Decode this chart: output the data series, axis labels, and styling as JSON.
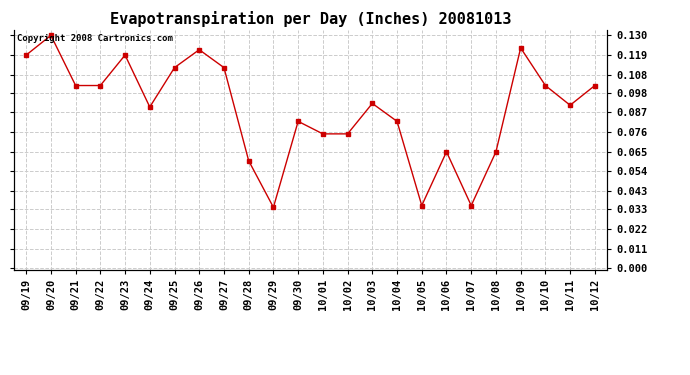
{
  "title": "Evapotranspiration per Day (Inches) 20081013",
  "copyright_text": "Copyright 2008 Cartronics.com",
  "x_labels": [
    "09/19",
    "09/20",
    "09/21",
    "09/22",
    "09/23",
    "09/24",
    "09/25",
    "09/26",
    "09/27",
    "09/28",
    "09/29",
    "09/30",
    "10/01",
    "10/02",
    "10/03",
    "10/04",
    "10/05",
    "10/06",
    "10/07",
    "10/08",
    "10/09",
    "10/10",
    "10/11",
    "10/12"
  ],
  "y_values": [
    0.119,
    0.13,
    0.102,
    0.102,
    0.119,
    0.09,
    0.112,
    0.122,
    0.112,
    0.06,
    0.034,
    0.082,
    0.075,
    0.075,
    0.092,
    0.082,
    0.035,
    0.065,
    0.035,
    0.065,
    0.123,
    0.102,
    0.091,
    0.102
  ],
  "line_color": "#cc0000",
  "marker": "s",
  "marker_size": 2.5,
  "ylim": [
    0.0,
    0.13
  ],
  "yticks": [
    0.0,
    0.011,
    0.022,
    0.033,
    0.043,
    0.054,
    0.065,
    0.076,
    0.087,
    0.098,
    0.108,
    0.119,
    0.13
  ],
  "background_color": "#ffffff",
  "grid_color": "#cccccc",
  "title_fontsize": 11,
  "tick_fontsize": 7.5,
  "copyright_fontsize": 6.5
}
